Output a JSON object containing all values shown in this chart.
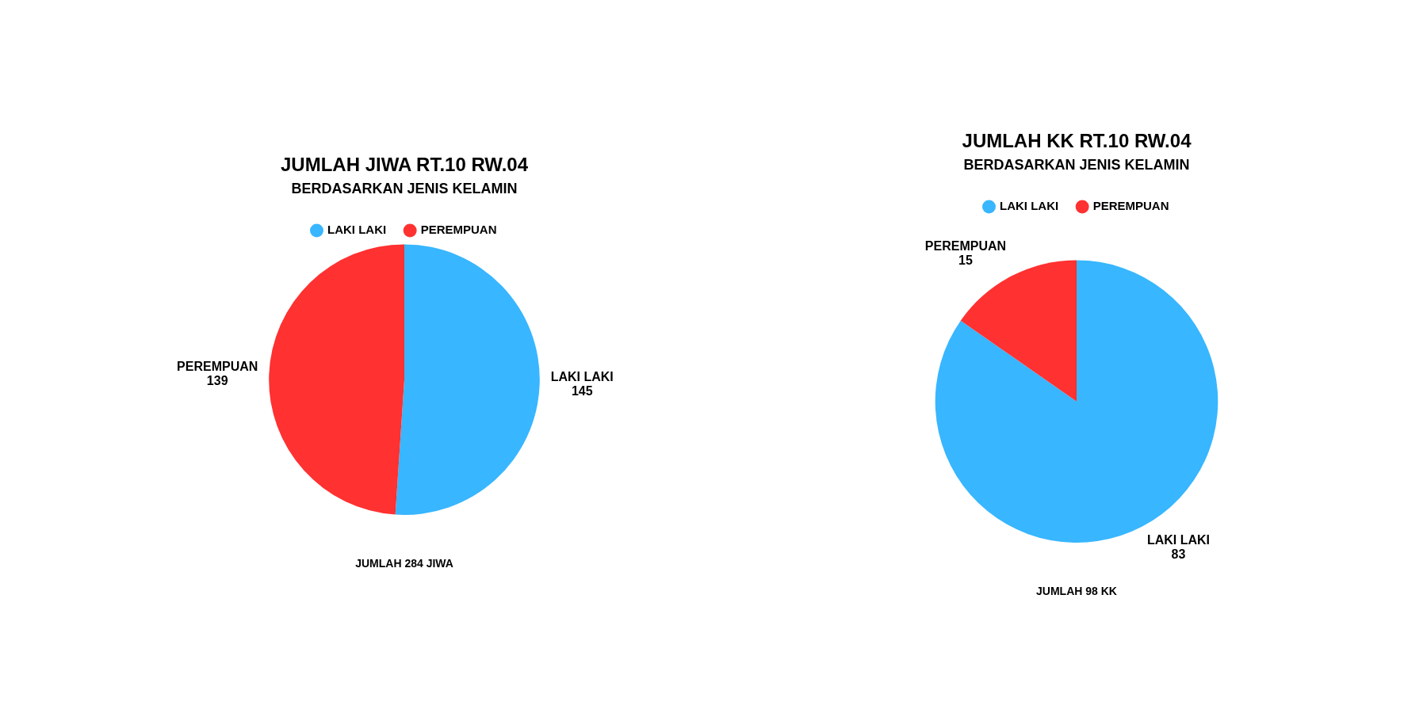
{
  "chart_data": [
    {
      "type": "pie",
      "title": "JUMLAH JIWA RT.10 RW.04",
      "subtitle": "BERDASARKAN JENIS KELAMIN",
      "categories": [
        "LAKI LAKI",
        "PEREMPUAN"
      ],
      "values": [
        145,
        139
      ],
      "colors": [
        "#38b6ff",
        "#ff3131"
      ],
      "data_labels": true,
      "legend": "top",
      "annotations": [
        "JUMLAH 284 JIWA"
      ]
    },
    {
      "type": "pie",
      "title": "JUMLAH KK RT.10 RW.04",
      "subtitle": "BERDASARKAN JENIS KELAMIN",
      "categories": [
        "LAKI LAKI",
        "PEREMPUAN"
      ],
      "values": [
        83,
        15
      ],
      "colors": [
        "#38b6ff",
        "#ff3131"
      ],
      "data_labels": true,
      "legend": "top",
      "annotations": [
        "JUMLAH 98 KK"
      ]
    }
  ]
}
